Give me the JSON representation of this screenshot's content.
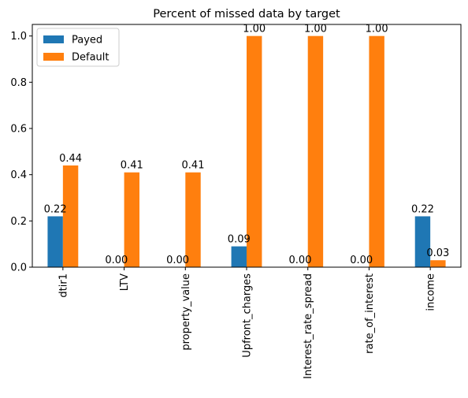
{
  "chart_data": {
    "type": "bar",
    "title": "Percent of missed data by target",
    "xlabel": "",
    "ylabel": "",
    "ylim": [
      0,
      1.05
    ],
    "yticks": [
      0.0,
      0.2,
      0.4,
      0.6,
      0.8,
      1.0
    ],
    "ytick_labels": [
      "0.0",
      "0.2",
      "0.4",
      "0.6",
      "0.8",
      "1.0"
    ],
    "categories": [
      "dtir1",
      "LTV",
      "property_value",
      "Upfront_charges",
      "Interest_rate_spread",
      "rate_of_interest",
      "income"
    ],
    "series": [
      {
        "name": "Payed",
        "color": "#1f77b4",
        "values": [
          0.22,
          0.0,
          0.0,
          0.09,
          0.0,
          0.0,
          0.22
        ],
        "labels": [
          "0.22",
          "0.00",
          "0.00",
          "0.09",
          "0.00",
          "0.00",
          "0.22"
        ]
      },
      {
        "name": "Default",
        "color": "#ff7f0e",
        "values": [
          0.44,
          0.41,
          0.41,
          1.0,
          1.0,
          1.0,
          0.03
        ],
        "labels": [
          "0.44",
          "0.41",
          "0.41",
          "1.00",
          "1.00",
          "1.00",
          "0.03"
        ]
      }
    ],
    "legend_position": "top-left",
    "grid": false
  }
}
